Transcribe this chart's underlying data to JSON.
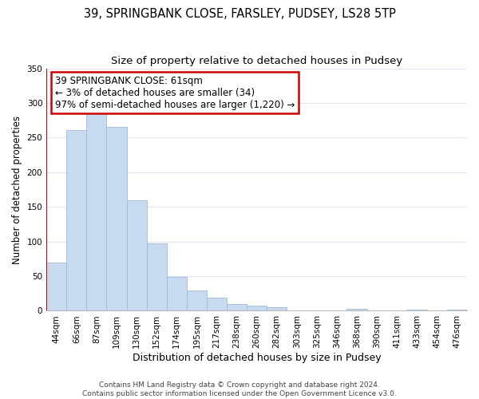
{
  "title": "39, SPRINGBANK CLOSE, FARSLEY, PUDSEY, LS28 5TP",
  "subtitle": "Size of property relative to detached houses in Pudsey",
  "xlabel": "Distribution of detached houses by size in Pudsey",
  "ylabel": "Number of detached properties",
  "categories": [
    "44sqm",
    "66sqm",
    "87sqm",
    "109sqm",
    "130sqm",
    "152sqm",
    "174sqm",
    "195sqm",
    "217sqm",
    "238sqm",
    "260sqm",
    "282sqm",
    "303sqm",
    "325sqm",
    "346sqm",
    "368sqm",
    "390sqm",
    "411sqm",
    "433sqm",
    "454sqm",
    "476sqm"
  ],
  "values": [
    70,
    261,
    293,
    265,
    160,
    97,
    49,
    29,
    19,
    10,
    7,
    5,
    0,
    0,
    0,
    3,
    0,
    0,
    2,
    0,
    2
  ],
  "bar_color": "#c8daf0",
  "bar_edge_color": "#a0b8d8",
  "annotation_box_color": "#ffffff",
  "annotation_border_color": "#cc0000",
  "vline_color": "#cc0000",
  "annotation_lines": [
    "39 SPRINGBANK CLOSE: 61sqm",
    "← 3% of detached houses are smaller (34)",
    "97% of semi-detached houses are larger (1,220) →"
  ],
  "ylim": [
    0,
    350
  ],
  "yticks": [
    0,
    50,
    100,
    150,
    200,
    250,
    300,
    350
  ],
  "footer_line1": "Contains HM Land Registry data © Crown copyright and database right 2024.",
  "footer_line2": "Contains public sector information licensed under the Open Government Licence v3.0.",
  "background_color": "#ffffff",
  "grid_color": "#dce8f0",
  "title_fontsize": 10.5,
  "subtitle_fontsize": 9.5,
  "xlabel_fontsize": 9,
  "ylabel_fontsize": 8.5,
  "tick_fontsize": 7.5,
  "annotation_fontsize": 8.5,
  "footer_fontsize": 6.5
}
